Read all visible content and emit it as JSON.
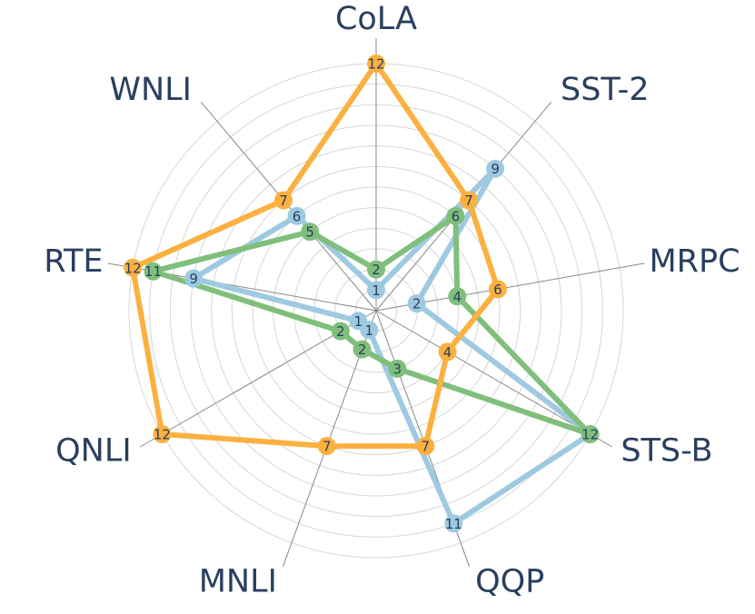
{
  "chart_data": {
    "type": "radar",
    "categories": [
      "CoLA",
      "SST-2",
      "MRPC",
      "STS-B",
      "QQP",
      "MNLI",
      "QNLI",
      "RTE",
      "WNLI"
    ],
    "rlim": [
      0,
      12
    ],
    "grid": true,
    "series": [
      {
        "color": "#9ecae1",
        "values": [
          1,
          9,
          2,
          12,
          11,
          1,
          1,
          9,
          6
        ]
      },
      {
        "color": "#7fbf7b",
        "values": [
          2,
          6,
          4,
          12,
          3,
          2,
          2,
          11,
          5
        ]
      },
      {
        "color": "#fbb040",
        "values": [
          12,
          7,
          6,
          4,
          7,
          7,
          12,
          12,
          7
        ]
      }
    ]
  }
}
